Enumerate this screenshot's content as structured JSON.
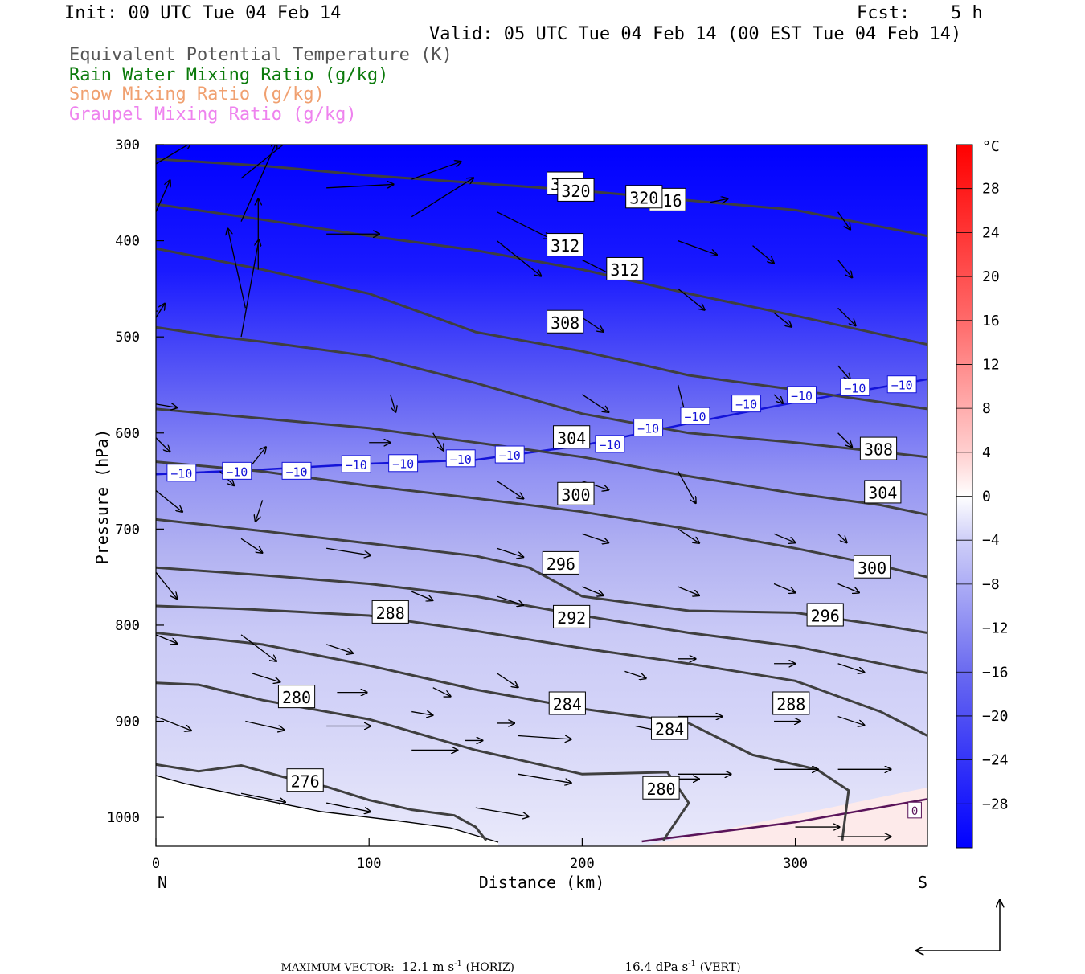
{
  "header": {
    "init": "Init: 00 UTC Tue 04 Feb 14",
    "fcst_label": "Fcst:",
    "fcst_value": "5 h",
    "valid": "Valid: 05 UTC Tue 04 Feb 14 (00 EST Tue 04 Feb 14)"
  },
  "legend": [
    {
      "text": "Equivalent Potential Temperature (K)",
      "color": "#555555"
    },
    {
      "text": "Rain Water Mixing Ratio (g/kg)",
      "color": "#0a7a0a"
    },
    {
      "text": "Snow Mixing Ratio (g/kg)",
      "color": "#f0a070"
    },
    {
      "text": "Graupel Mixing Ratio (g/kg)",
      "color": "#ee82ee"
    }
  ],
  "footer": {
    "max_vector_label": "MAXIMUM VECTOR:",
    "horiz_value": "12.1 m s",
    "horiz_unit": "(HORIZ)",
    "vert_value": "16.4 dPa s",
    "vert_unit": "(VERT)",
    "exponent": "-1"
  },
  "chart_data": {
    "type": "cross-section",
    "xlabel": "Distance (km)",
    "ylabel": "Pressure (hPa)",
    "xlim": [
      0,
      362
    ],
    "ylim": [
      300,
      1030
    ],
    "x_ticks": [
      0,
      100,
      200,
      300
    ],
    "y_ticks": [
      300,
      400,
      500,
      600,
      700,
      800,
      900,
      1000
    ],
    "left_end_label": "N",
    "right_end_label": "S",
    "colorbar": {
      "unit": "°C",
      "ticks": [
        28,
        24,
        20,
        16,
        12,
        8,
        4,
        0,
        -4,
        -8,
        -12,
        -16,
        -20,
        -24,
        -28
      ],
      "range": [
        -32,
        32
      ]
    },
    "colors": {
      "contour": "#3f3f3f",
      "isotherm_m10": "#1414d8",
      "isotherm_0": "#5a145a"
    },
    "theta_e_contours": [
      {
        "label": "276",
        "points": [
          [
            0,
            945
          ],
          [
            20,
            952
          ],
          [
            40,
            946
          ],
          [
            60,
            958
          ],
          [
            80,
            968
          ],
          [
            100,
            982
          ],
          [
            120,
            992
          ],
          [
            140,
            998
          ],
          [
            150,
            1010
          ],
          [
            155,
            1024
          ]
        ],
        "labels": [
          [
            70,
            962
          ]
        ]
      },
      {
        "label": "280",
        "points": [
          [
            0,
            860
          ],
          [
            20,
            862
          ],
          [
            50,
            878
          ],
          [
            100,
            898
          ],
          [
            150,
            930
          ],
          [
            200,
            955
          ],
          [
            240,
            953
          ],
          [
            250,
            985
          ],
          [
            238,
            1024
          ]
        ],
        "labels": [
          [
            66,
            875
          ],
          [
            237,
            970
          ]
        ]
      },
      {
        "label": "284",
        "points": [
          [
            0,
            808
          ],
          [
            50,
            820
          ],
          [
            100,
            842
          ],
          [
            150,
            867
          ],
          [
            200,
            887
          ],
          [
            250,
            902
          ],
          [
            280,
            935
          ],
          [
            310,
            950
          ],
          [
            325,
            972
          ],
          [
            322,
            1024
          ]
        ],
        "labels": [
          [
            193,
            882
          ],
          [
            241,
            908
          ]
        ]
      },
      {
        "label": "288",
        "points": [
          [
            0,
            780
          ],
          [
            40,
            783
          ],
          [
            100,
            790
          ],
          [
            150,
            806
          ],
          [
            200,
            824
          ],
          [
            250,
            840
          ],
          [
            300,
            858
          ],
          [
            340,
            890
          ],
          [
            362,
            915
          ]
        ],
        "labels": [
          [
            110,
            787
          ],
          [
            298,
            882
          ]
        ]
      },
      {
        "label": "292",
        "points": [
          [
            0,
            740
          ],
          [
            50,
            748
          ],
          [
            100,
            757
          ],
          [
            150,
            770
          ],
          [
            200,
            790
          ],
          [
            250,
            808
          ],
          [
            300,
            822
          ],
          [
            340,
            840
          ],
          [
            362,
            850
          ]
        ],
        "labels": [
          [
            195,
            792
          ]
        ]
      },
      {
        "label": "296",
        "points": [
          [
            0,
            690
          ],
          [
            50,
            702
          ],
          [
            100,
            715
          ],
          [
            150,
            728
          ],
          [
            175,
            740
          ],
          [
            200,
            770
          ],
          [
            250,
            785
          ],
          [
            300,
            787
          ],
          [
            340,
            800
          ],
          [
            362,
            808
          ]
        ],
        "labels": [
          [
            190,
            736
          ],
          [
            314,
            790
          ]
        ]
      },
      {
        "label": "300",
        "points": [
          [
            0,
            630
          ],
          [
            50,
            640
          ],
          [
            100,
            655
          ],
          [
            150,
            668
          ],
          [
            200,
            682
          ],
          [
            250,
            700
          ],
          [
            300,
            720
          ],
          [
            340,
            738
          ],
          [
            362,
            750
          ]
        ],
        "labels": [
          [
            197,
            664
          ],
          [
            336,
            740
          ]
        ]
      },
      {
        "label": "304",
        "points": [
          [
            0,
            575
          ],
          [
            50,
            585
          ],
          [
            100,
            595
          ],
          [
            150,
            610
          ],
          [
            200,
            625
          ],
          [
            250,
            645
          ],
          [
            300,
            663
          ],
          [
            340,
            675
          ],
          [
            362,
            685
          ]
        ],
        "labels": [
          [
            195,
            605
          ],
          [
            341,
            662
          ]
        ]
      },
      {
        "label": "308",
        "points": [
          [
            0,
            490
          ],
          [
            30,
            500
          ],
          [
            50,
            505
          ],
          [
            100,
            520
          ],
          [
            150,
            548
          ],
          [
            200,
            580
          ],
          [
            250,
            600
          ],
          [
            300,
            610
          ],
          [
            362,
            625
          ]
        ],
        "labels": [
          [
            192,
            485
          ],
          [
            339,
            617
          ]
        ]
      },
      {
        "label": "312",
        "points": [
          [
            0,
            408
          ],
          [
            50,
            430
          ],
          [
            100,
            455
          ],
          [
            150,
            495
          ],
          [
            200,
            515
          ],
          [
            250,
            540
          ],
          [
            300,
            555
          ],
          [
            362,
            575
          ]
        ],
        "labels": [
          [
            192,
            405
          ],
          [
            220,
            430
          ]
        ]
      },
      {
        "label": "316",
        "points": [
          [
            0,
            362
          ],
          [
            50,
            378
          ],
          [
            100,
            395
          ],
          [
            150,
            410
          ],
          [
            200,
            430
          ],
          [
            250,
            455
          ],
          [
            300,
            478
          ],
          [
            362,
            508
          ]
        ],
        "labels": [
          [
            192,
            341
          ],
          [
            240,
            358
          ]
        ]
      },
      {
        "label": "320",
        "points": [
          [
            0,
            315
          ],
          [
            50,
            322
          ],
          [
            100,
            332
          ],
          [
            150,
            340
          ],
          [
            200,
            348
          ],
          [
            250,
            358
          ],
          [
            300,
            368
          ],
          [
            362,
            395
          ]
        ],
        "labels": [
          [
            197,
            348
          ],
          [
            229,
            355
          ]
        ]
      }
    ],
    "isotherm_minus10": {
      "label": "−10",
      "points": [
        [
          0,
          643
        ],
        [
          50,
          638
        ],
        [
          100,
          632
        ],
        [
          150,
          628
        ],
        [
          200,
          613
        ],
        [
          250,
          590
        ],
        [
          300,
          568
        ],
        [
          362,
          544
        ]
      ],
      "labels": [
        [
          12,
          642
        ],
        [
          38,
          640
        ],
        [
          66,
          640
        ],
        [
          94,
          633
        ],
        [
          116,
          632
        ],
        [
          143,
          627
        ],
        [
          166,
          623
        ],
        [
          213,
          612
        ],
        [
          231,
          595
        ],
        [
          253,
          583
        ],
        [
          277,
          570
        ],
        [
          303,
          561
        ],
        [
          328,
          553
        ],
        [
          350,
          550
        ]
      ]
    },
    "isotherm_zero": {
      "label": "0",
      "points": [
        [
          228,
          1025
        ],
        [
          300,
          1005
        ],
        [
          362,
          981
        ]
      ],
      "labels": [
        [
          356,
          993
        ]
      ]
    },
    "wind_vectors": [
      [
        0,
        320,
        20,
        -12
      ],
      [
        0,
        370,
        8,
        -18
      ],
      [
        40,
        335,
        30,
        -24
      ],
      [
        40,
        380,
        20,
        -45
      ],
      [
        48,
        430,
        0,
        -40
      ],
      [
        42,
        470,
        -10,
        -45
      ],
      [
        40,
        500,
        10,
        -55
      ],
      [
        80,
        345,
        38,
        -2
      ],
      [
        80,
        393,
        30,
        0
      ],
      [
        80,
        290,
        30,
        -22
      ],
      [
        120,
        336,
        28,
        -10
      ],
      [
        120,
        375,
        35,
        -22
      ],
      [
        0,
        480,
        5,
        -8
      ],
      [
        0,
        470,
        -3,
        2
      ],
      [
        0,
        570,
        12,
        2
      ],
      [
        0,
        605,
        8,
        8
      ],
      [
        0,
        660,
        15,
        12
      ],
      [
        0,
        745,
        12,
        15
      ],
      [
        0,
        810,
        12,
        5
      ],
      [
        0,
        895,
        20,
        8
      ],
      [
        40,
        710,
        12,
        8
      ],
      [
        40,
        810,
        20,
        15
      ],
      [
        45,
        850,
        16,
        5
      ],
      [
        42,
        900,
        22,
        5
      ],
      [
        40,
        975,
        25,
        5
      ],
      [
        80,
        720,
        25,
        4
      ],
      [
        80,
        820,
        15,
        5
      ],
      [
        85,
        870,
        17,
        0
      ],
      [
        80,
        905,
        25,
        0
      ],
      [
        80,
        985,
        25,
        5
      ],
      [
        100,
        610,
        12,
        0
      ],
      [
        120,
        765,
        12,
        5
      ],
      [
        120,
        930,
        26,
        0
      ],
      [
        120,
        890,
        12,
        2
      ],
      [
        130,
        865,
        10,
        5
      ],
      [
        145,
        920,
        10,
        0
      ],
      [
        150,
        990,
        30,
        5
      ],
      [
        160,
        370,
        30,
        15
      ],
      [
        160,
        400,
        25,
        20
      ],
      [
        160,
        650,
        15,
        10
      ],
      [
        160,
        720,
        15,
        5
      ],
      [
        160,
        770,
        15,
        5
      ],
      [
        160,
        850,
        12,
        8
      ],
      [
        160,
        902,
        10,
        0
      ],
      [
        170,
        915,
        30,
        2
      ],
      [
        170,
        955,
        30,
        5
      ],
      [
        200,
        420,
        20,
        10
      ],
      [
        200,
        480,
        12,
        8
      ],
      [
        200,
        560,
        15,
        10
      ],
      [
        200,
        650,
        15,
        5
      ],
      [
        200,
        705,
        15,
        5
      ],
      [
        200,
        760,
        12,
        5
      ],
      [
        220,
        848,
        12,
        4
      ],
      [
        225,
        905,
        25,
        5
      ],
      [
        230,
        960,
        30,
        0
      ],
      [
        240,
        350,
        10,
        0
      ],
      [
        245,
        400,
        22,
        8
      ],
      [
        245,
        450,
        15,
        12
      ],
      [
        245,
        550,
        5,
        20
      ],
      [
        245,
        640,
        10,
        18
      ],
      [
        245,
        700,
        12,
        8
      ],
      [
        245,
        760,
        12,
        5
      ],
      [
        245,
        835,
        10,
        0
      ],
      [
        245,
        895,
        25,
        0
      ],
      [
        245,
        955,
        30,
        0
      ],
      [
        260,
        360,
        10,
        -2
      ],
      [
        280,
        405,
        12,
        10
      ],
      [
        290,
        475,
        10,
        8
      ],
      [
        290,
        560,
        5,
        5
      ],
      [
        290,
        705,
        12,
        5
      ],
      [
        290,
        757,
        12,
        5
      ],
      [
        290,
        840,
        12,
        0
      ],
      [
        290,
        900,
        15,
        0
      ],
      [
        290,
        950,
        25,
        0
      ],
      [
        300,
        1010,
        25,
        0
      ],
      [
        320,
        370,
        7,
        10
      ],
      [
        320,
        420,
        8,
        10
      ],
      [
        320,
        470,
        10,
        10
      ],
      [
        320,
        530,
        7,
        8
      ],
      [
        320,
        600,
        8,
        8
      ],
      [
        320,
        705,
        5,
        5
      ],
      [
        320,
        757,
        12,
        5
      ],
      [
        320,
        840,
        15,
        5
      ],
      [
        320,
        895,
        15,
        5
      ],
      [
        320,
        950,
        30,
        0
      ],
      [
        320,
        1020,
        30,
        0
      ],
      [
        30,
        640,
        8,
        8
      ],
      [
        45,
        633,
        8,
        -10
      ],
      [
        130,
        600,
        6,
        10
      ],
      [
        110,
        560,
        3,
        10
      ],
      [
        50,
        670,
        -4,
        12
      ]
    ]
  }
}
